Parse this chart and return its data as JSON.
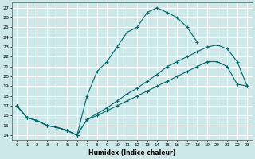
{
  "title": "",
  "xlabel": "Humidex (Indice chaleur)",
  "bg_color": "#cce8e8",
  "grid_color": "#ffffff",
  "line_color": "#006666",
  "xlim": [
    -0.5,
    23.5
  ],
  "ylim": [
    13.5,
    27.5
  ],
  "xticks": [
    0,
    1,
    2,
    3,
    4,
    5,
    6,
    7,
    8,
    9,
    10,
    11,
    12,
    13,
    14,
    15,
    16,
    17,
    18,
    19,
    20,
    21,
    22,
    23
  ],
  "yticks": [
    14,
    15,
    16,
    17,
    18,
    19,
    20,
    21,
    22,
    23,
    24,
    25,
    26,
    27
  ],
  "lines": [
    {
      "x": [
        0,
        1,
        2,
        3,
        4,
        5,
        6,
        7,
        8,
        9,
        10,
        11,
        12,
        13,
        14,
        15,
        16,
        17,
        18
      ],
      "y": [
        17.0,
        15.8,
        15.5,
        15.0,
        14.8,
        14.5,
        14.0,
        18.0,
        20.5,
        21.5,
        23.0,
        24.5,
        25.0,
        26.5,
        27.0,
        26.5,
        26.0,
        25.0,
        23.5
      ]
    },
    {
      "x": [
        0,
        1,
        2,
        3,
        4,
        5,
        6,
        7,
        8,
        9,
        10,
        11,
        12,
        13,
        14,
        15,
        16,
        17,
        18,
        19,
        20,
        21,
        22,
        23
      ],
      "y": [
        17.0,
        15.8,
        15.5,
        15.0,
        14.8,
        14.5,
        14.0,
        15.6,
        16.0,
        16.5,
        17.0,
        17.5,
        18.0,
        18.5,
        19.0,
        19.5,
        20.0,
        20.5,
        21.0,
        21.5,
        21.5,
        21.0,
        19.2,
        19.0
      ]
    },
    {
      "x": [
        0,
        1,
        2,
        3,
        4,
        5,
        6,
        7,
        8,
        9,
        10,
        11,
        12,
        13,
        14,
        15,
        16,
        17,
        18,
        19,
        20,
        21,
        22,
        23
      ],
      "y": [
        17.0,
        15.8,
        15.5,
        15.0,
        14.8,
        14.5,
        14.0,
        15.6,
        16.2,
        16.8,
        17.5,
        18.2,
        18.8,
        19.5,
        20.2,
        21.0,
        21.5,
        22.0,
        22.5,
        23.0,
        23.2,
        22.8,
        21.5,
        19.0
      ]
    }
  ]
}
